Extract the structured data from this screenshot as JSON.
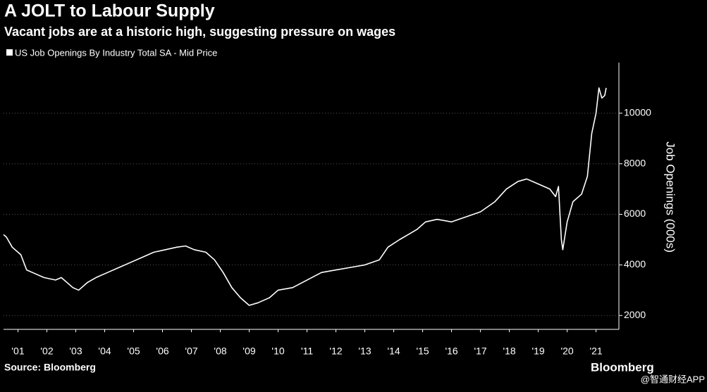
{
  "chart_data": {
    "type": "line",
    "title": "A JOLT to Labour Supply",
    "subtitle": "Vacant jobs are at a historic high, suggesting pressure on wages",
    "y_label": "Job Openings (000s)",
    "source": "Source: Bloomberg",
    "brand": "Bloomberg",
    "watermark": "@智通财经APP",
    "x": [
      2001.0,
      2001.1,
      2001.3,
      2001.6,
      2001.8,
      2002.0,
      2002.4,
      2002.8,
      2003.0,
      2003.4,
      2003.6,
      2003.9,
      2004.2,
      2004.6,
      2005.0,
      2005.4,
      2005.8,
      2006.2,
      2006.6,
      2007.0,
      2007.3,
      2007.6,
      2008.0,
      2008.3,
      2008.6,
      2008.9,
      2009.2,
      2009.5,
      2009.8,
      2010.2,
      2010.5,
      2011.0,
      2011.5,
      2012.0,
      2012.5,
      2013.0,
      2013.5,
      2014.0,
      2014.3,
      2014.7,
      2015.0,
      2015.3,
      2015.6,
      2016.0,
      2016.5,
      2017.0,
      2017.5,
      2018.0,
      2018.4,
      2018.8,
      2019.1,
      2019.5,
      2019.9,
      2020.1,
      2020.2,
      2020.3,
      2020.35,
      2020.5,
      2020.7,
      2021.0,
      2021.2,
      2021.35,
      2021.5,
      2021.6,
      2021.7,
      2021.8,
      2021.85
    ],
    "series": [
      {
        "name": "US Job Openings By Industry Total SA - Mid Price",
        "color": "#ffffff",
        "values": [
          5200,
          5100,
          4700,
          4400,
          3800,
          3700,
          3500,
          3400,
          3500,
          3100,
          3000,
          3300,
          3500,
          3700,
          3900,
          4100,
          4300,
          4500,
          4600,
          4700,
          4750,
          4600,
          4500,
          4200,
          3700,
          3100,
          2700,
          2400,
          2500,
          2700,
          3000,
          3100,
          3400,
          3700,
          3800,
          3900,
          4000,
          4200,
          4700,
          5000,
          5200,
          5400,
          5700,
          5800,
          5700,
          5900,
          6100,
          6500,
          7000,
          7300,
          7400,
          7200,
          7000,
          6700,
          7100,
          5000,
          4600,
          5700,
          6500,
          6800,
          7500,
          9200,
          10000,
          11000,
          10600,
          10700,
          11000
        ]
      }
    ],
    "xlim": [
      2001.0,
      2022.29
    ],
    "xticks": [
      {
        "value": 2001.5,
        "label": "'01"
      },
      {
        "value": 2002.5,
        "label": "'02"
      },
      {
        "value": 2003.5,
        "label": "'03"
      },
      {
        "value": 2004.5,
        "label": "'04"
      },
      {
        "value": 2005.5,
        "label": "'05"
      },
      {
        "value": 2006.5,
        "label": "'06"
      },
      {
        "value": 2007.5,
        "label": "'07"
      },
      {
        "value": 2008.5,
        "label": "'08"
      },
      {
        "value": 2009.5,
        "label": "'09"
      },
      {
        "value": 2010.5,
        "label": "'10"
      },
      {
        "value": 2011.5,
        "label": "'11"
      },
      {
        "value": 2012.5,
        "label": "'12"
      },
      {
        "value": 2013.5,
        "label": "'13"
      },
      {
        "value": 2014.5,
        "label": "'14"
      },
      {
        "value": 2015.5,
        "label": "'15"
      },
      {
        "value": 2016.5,
        "label": "'16"
      },
      {
        "value": 2017.5,
        "label": "'17"
      },
      {
        "value": 2018.5,
        "label": "'18"
      },
      {
        "value": 2019.5,
        "label": "'19"
      },
      {
        "value": 2020.5,
        "label": "'20"
      },
      {
        "value": 2021.5,
        "label": "'21"
      }
    ],
    "ylim": [
      1450,
      12000
    ],
    "yticks": [
      2000,
      4000,
      6000,
      8000,
      10000
    ],
    "grid": true
  }
}
